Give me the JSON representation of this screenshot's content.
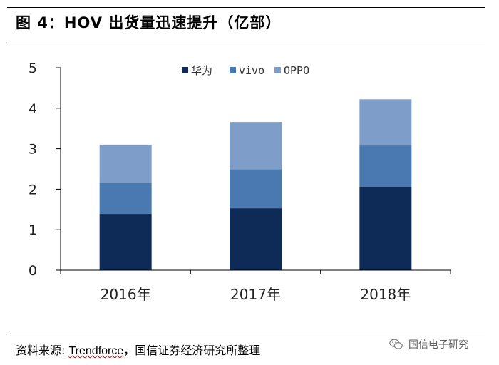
{
  "figure": {
    "title": "图 4：HOV 出货量迅速提升（亿部）",
    "source_label": "资料来源",
    "source_brand": "Trendforce",
    "source_rest": "，国信证券经济研究所整理",
    "watermark": "国信电子研究"
  },
  "colors": {
    "huawei": "#0e2b57",
    "vivo": "#4a78b0",
    "oppo": "#7f9dc9",
    "axis": "#000000"
  },
  "chart_data": {
    "type": "bar",
    "stacked": true,
    "title": "HOV 出货量迅速提升（亿部）",
    "categories": [
      "2016年",
      "2017年",
      "2018年"
    ],
    "series": [
      {
        "name": "华为",
        "values": [
          1.39,
          1.53,
          2.06
        ]
      },
      {
        "name": "vivo",
        "values": [
          0.77,
          0.96,
          1.02
        ]
      },
      {
        "name": "OPPO",
        "values": [
          0.94,
          1.17,
          1.14
        ]
      }
    ],
    "ylim": [
      0,
      5
    ],
    "yticks": [
      0,
      1,
      2,
      3,
      4,
      5
    ],
    "xlabel": "",
    "ylabel": "",
    "legend": "top-right",
    "grid": false
  }
}
